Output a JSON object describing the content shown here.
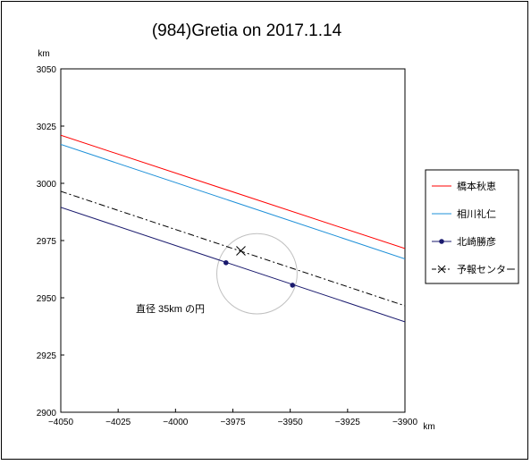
{
  "chart_data": {
    "type": "line",
    "title": "(984)Gretia on 2017.1.14",
    "xunit": "km",
    "yunit": "km",
    "xlim": [
      -4050,
      -3900
    ],
    "ylim": [
      2900,
      3050
    ],
    "xticks": [
      -4050,
      -4025,
      -4000,
      -3975,
      -3950,
      -3925,
      -3900
    ],
    "yticks": [
      2900,
      2925,
      2950,
      2975,
      3000,
      3025,
      3050
    ],
    "grid": false,
    "legend_position": "right",
    "series": [
      {
        "name": "橋本秋恵",
        "color": "#ff0000",
        "style": "solid",
        "x": [
          -4050,
          -3900
        ],
        "y": [
          3021,
          2971.5
        ]
      },
      {
        "name": "相川礼仁",
        "color": "#1e90d8",
        "style": "solid",
        "x": [
          -4050,
          -3900
        ],
        "y": [
          3017,
          2967
        ]
      },
      {
        "name": "北崎勝彦",
        "color": "#1a1a6e",
        "style": "solid",
        "marker": "dot",
        "x": [
          -4050,
          -3900
        ],
        "y": [
          2989.5,
          2939.5
        ],
        "points": [
          [
            -3978,
            2965.3
          ],
          [
            -3949,
            2955.5
          ]
        ]
      },
      {
        "name": "予報センター",
        "color": "#000000",
        "style": "dashdot",
        "marker": "x",
        "x": [
          -4050,
          -3900
        ],
        "y": [
          2996.5,
          2946.5
        ],
        "points": [
          [
            -3971.5,
            2970.5
          ]
        ]
      }
    ],
    "circle": {
      "cx": -3964.5,
      "cy": 2960.5,
      "r": 17.5,
      "color": "#c0c0c0"
    },
    "annotation": "直径 35km の円"
  }
}
